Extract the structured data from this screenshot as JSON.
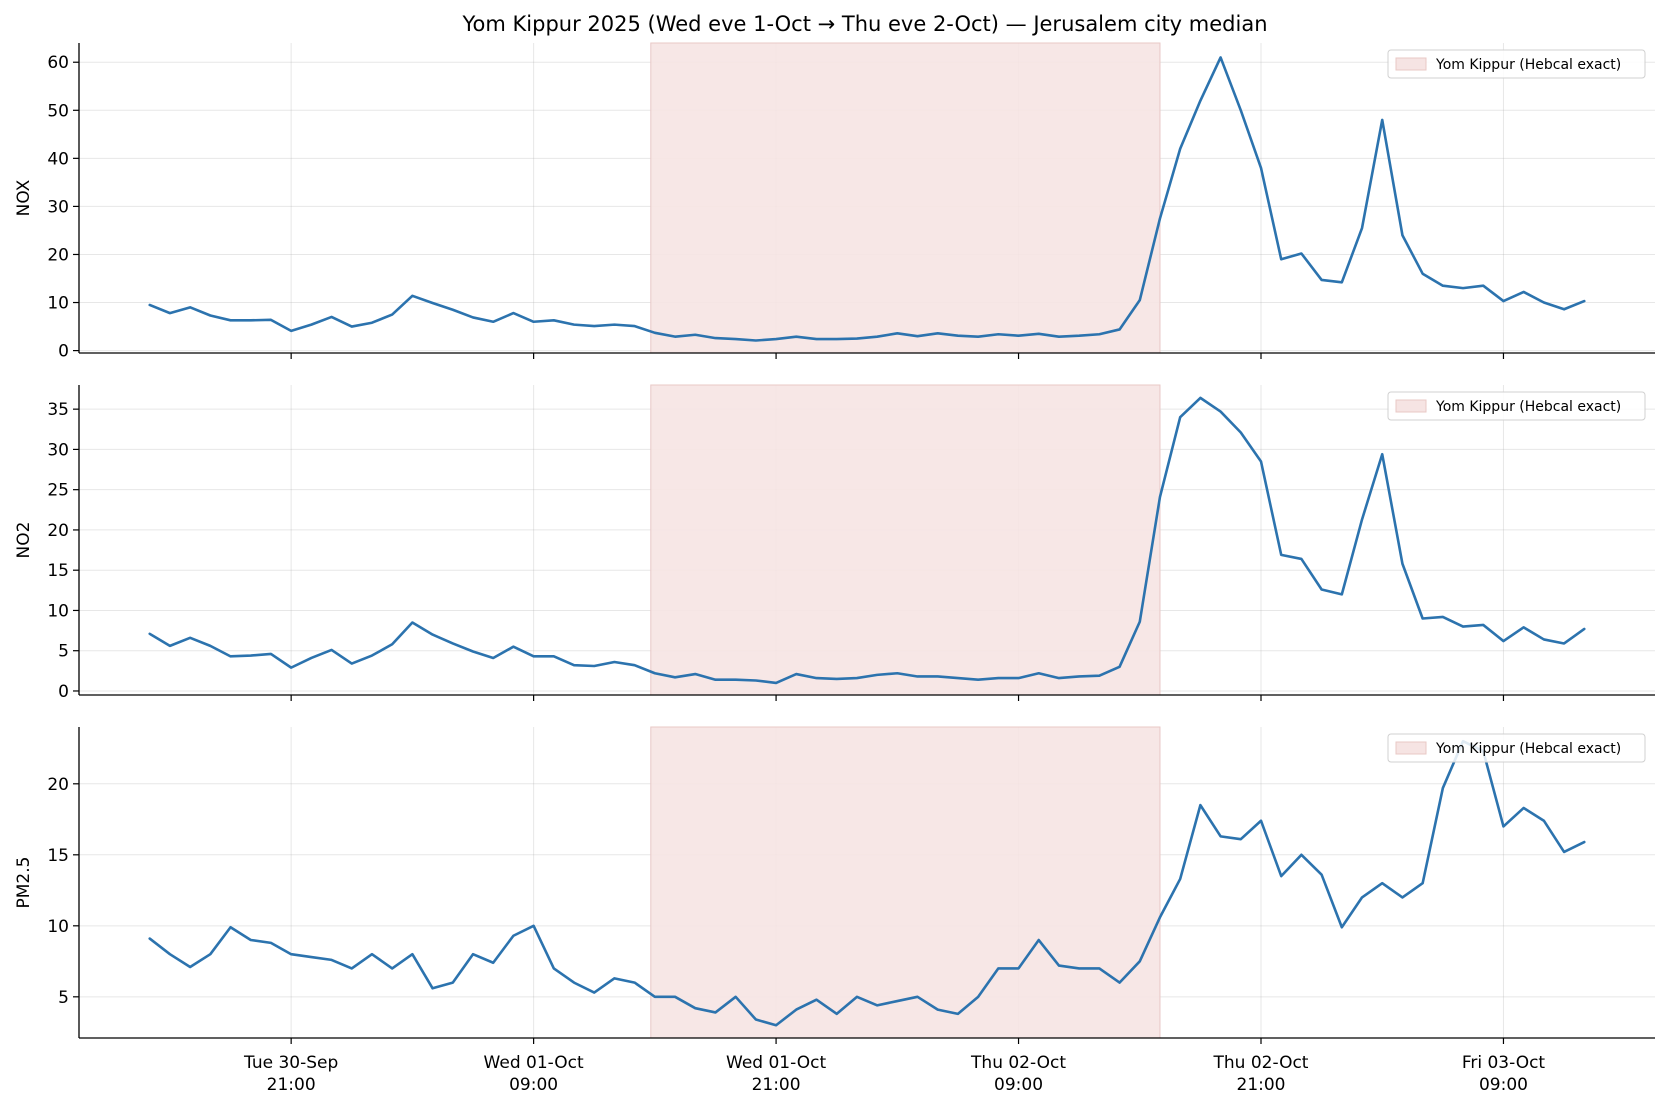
{
  "colors": {
    "line": "#2c73ae",
    "shade_fill": "#f6e4e3",
    "shade_edge": "#e8c8c6"
  },
  "chart_data": {
    "type": "line",
    "title": "Yom Kippur 2025 (Wed eve 1-Oct → Thu eve 2-Oct) — Jerusalem city median",
    "x_unit": "hour",
    "x_start": "2025-09-30 14:00",
    "x_step_hours": 1,
    "x_ticks": [
      {
        "hour": 7,
        "line1": "Tue 30-Sep",
        "line2": "21:00"
      },
      {
        "hour": 19,
        "line1": "Wed 01-Oct",
        "line2": "09:00"
      },
      {
        "hour": 31,
        "line1": "Wed 01-Oct",
        "line2": "21:00"
      },
      {
        "hour": 43,
        "line1": "Thu 02-Oct",
        "line2": "09:00"
      },
      {
        "hour": 55,
        "line1": "Thu 02-Oct",
        "line2": "21:00"
      },
      {
        "hour": 67,
        "line1": "Fri 03-Oct",
        "line2": "09:00"
      }
    ],
    "x_range": [
      -3.5,
      74.5
    ],
    "shaded_interval": [
      24.8,
      50.0
    ],
    "legend": "Yom Kippur (Hebcal exact)",
    "legend_position": "upper right",
    "panels": [
      {
        "ylabel": "NOX",
        "ylim": [
          -0.5,
          64
        ],
        "yticks": [
          0,
          10,
          20,
          30,
          40,
          50,
          60
        ],
        "values": [
          9.5,
          7.8,
          9.0,
          7.3,
          6.3,
          6.3,
          6.4,
          4.1,
          5.4,
          7.0,
          5.0,
          5.8,
          7.5,
          11.4,
          9.9,
          8.5,
          6.9,
          6.0,
          7.8,
          6.0,
          6.3,
          5.4,
          5.1,
          5.4,
          5.1,
          3.7,
          2.9,
          3.3,
          2.6,
          2.4,
          2.1,
          2.4,
          2.9,
          2.4,
          2.4,
          2.5,
          2.9,
          3.6,
          3.0,
          3.6,
          3.1,
          2.9,
          3.4,
          3.1,
          3.5,
          2.9,
          3.1,
          3.4,
          4.4,
          10.5,
          27.5,
          42.0,
          52.0,
          61.0,
          50.0,
          38.0,
          19.0,
          20.2,
          14.7,
          14.2,
          25.5,
          48.0,
          24.0,
          16.0,
          13.5,
          13.0,
          13.5,
          10.3,
          12.2,
          10.0,
          8.6,
          10.3
        ]
      },
      {
        "ylabel": "NO2",
        "ylim": [
          -0.5,
          38
        ],
        "yticks": [
          0,
          5,
          10,
          15,
          20,
          25,
          30,
          35
        ],
        "values": [
          7.1,
          5.6,
          6.6,
          5.6,
          4.3,
          4.4,
          4.6,
          2.9,
          4.1,
          5.1,
          3.4,
          4.4,
          5.8,
          8.5,
          7.0,
          5.9,
          4.9,
          4.1,
          5.5,
          4.3,
          4.3,
          3.2,
          3.1,
          3.6,
          3.2,
          2.2,
          1.7,
          2.1,
          1.4,
          1.4,
          1.3,
          1.0,
          2.1,
          1.6,
          1.5,
          1.6,
          2.0,
          2.2,
          1.8,
          1.8,
          1.6,
          1.4,
          1.6,
          1.6,
          2.2,
          1.6,
          1.8,
          1.9,
          3.0,
          8.6,
          24.1,
          34.0,
          36.4,
          34.7,
          32.1,
          28.5,
          16.9,
          16.4,
          12.6,
          12.0,
          21.3,
          29.4,
          15.8,
          9.0,
          9.2,
          8.0,
          8.2,
          6.2,
          7.9,
          6.4,
          5.9,
          7.7
        ]
      },
      {
        "ylabel": "PM2.5",
        "ylim": [
          2.1,
          24
        ],
        "yticks": [
          5,
          10,
          15,
          20
        ],
        "values": [
          9.1,
          8.0,
          7.1,
          8.0,
          9.9,
          9.0,
          8.8,
          8.0,
          7.8,
          7.6,
          7.0,
          8.0,
          7.0,
          8.0,
          5.6,
          6.0,
          8.0,
          7.4,
          9.3,
          10.0,
          7.0,
          6.0,
          5.3,
          6.3,
          6.0,
          5.0,
          5.0,
          4.2,
          3.9,
          5.0,
          3.4,
          3.0,
          4.1,
          4.8,
          3.8,
          5.0,
          4.4,
          4.7,
          5.0,
          4.1,
          3.8,
          5.0,
          7.0,
          7.0,
          9.0,
          7.2,
          7.0,
          7.0,
          6.0,
          7.5,
          10.6,
          13.3,
          18.5,
          16.3,
          16.1,
          17.4,
          13.5,
          15.0,
          13.6,
          9.9,
          12.0,
          13.0,
          12.0,
          13.0,
          19.7,
          23.0,
          22.3,
          17.0,
          18.3,
          17.4,
          15.2,
          15.9
        ]
      }
    ]
  }
}
